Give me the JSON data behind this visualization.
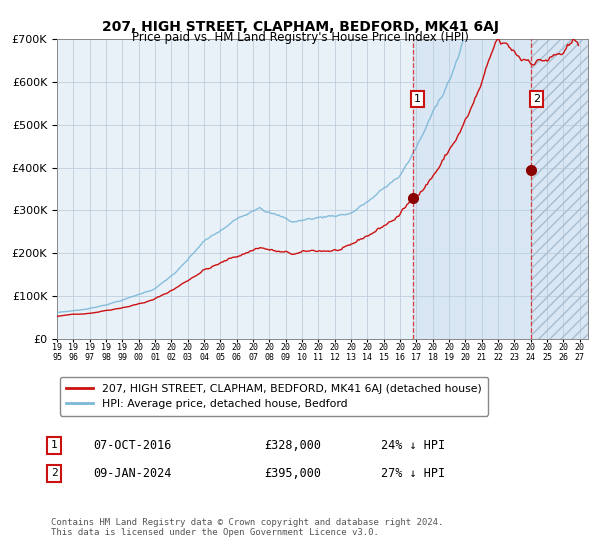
{
  "title": "207, HIGH STREET, CLAPHAM, BEDFORD, MK41 6AJ",
  "subtitle": "Price paid vs. HM Land Registry's House Price Index (HPI)",
  "ylim": [
    0,
    700000
  ],
  "yticks": [
    0,
    100000,
    200000,
    300000,
    400000,
    500000,
    600000,
    700000
  ],
  "xtick_years": [
    1995,
    1996,
    1997,
    1998,
    1999,
    2000,
    2001,
    2002,
    2003,
    2004,
    2005,
    2006,
    2007,
    2008,
    2009,
    2010,
    2011,
    2012,
    2013,
    2014,
    2015,
    2016,
    2017,
    2018,
    2019,
    2020,
    2021,
    2022,
    2023,
    2024,
    2025,
    2026,
    2027
  ],
  "hpi_color": "#7ab8d8",
  "price_color": "#cc1111",
  "bg_color": "#e8f0f8",
  "sale1_x": 2016.77,
  "sale1_y": 328000,
  "sale2_x": 2024.03,
  "sale2_y": 395000,
  "legend_line1": "207, HIGH STREET, CLAPHAM, BEDFORD, MK41 6AJ (detached house)",
  "legend_line2": "HPI: Average price, detached house, Bedford",
  "note1_num": "1",
  "note1_date": "07-OCT-2016",
  "note1_price": "£328,000",
  "note1_hpi": "24% ↓ HPI",
  "note2_num": "2",
  "note2_date": "09-JAN-2024",
  "note2_price": "£395,000",
  "note2_hpi": "27% ↓ HPI",
  "footer": "Contains HM Land Registry data © Crown copyright and database right 2024.\nThis data is licensed under the Open Government Licence v3.0."
}
